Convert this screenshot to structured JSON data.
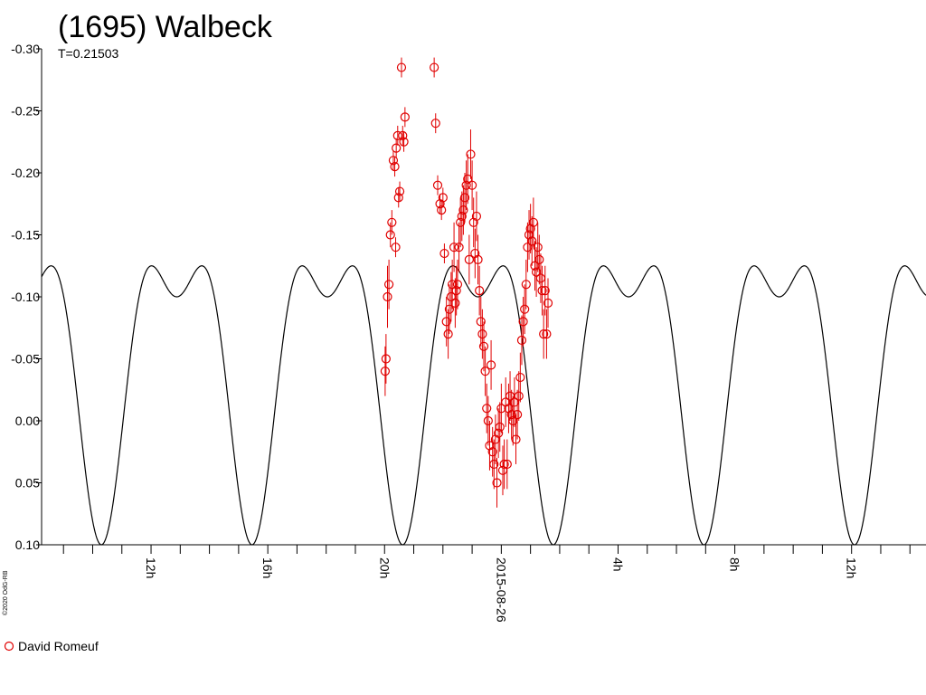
{
  "chart_data": {
    "type": "scatter",
    "title": "(1695) Walbeck",
    "subtitle": "T=0.21503",
    "copyright": "©2020 OdG-RB",
    "xlabel": "",
    "ylabel": "",
    "ylim": [
      0.1,
      -0.3
    ],
    "y_ticks": [
      "-0.30",
      "-0.25",
      "-0.20",
      "-0.15",
      "-0.10",
      "-0.05",
      "0.00",
      "0.05",
      "0.10"
    ],
    "x_ticks": [
      "12h",
      "16h",
      "20h",
      "2015-08-26",
      "4h",
      "8h",
      "12h"
    ],
    "x_tick_hours": [
      12,
      16,
      20,
      24,
      28,
      32,
      36
    ],
    "xlim_hours": [
      8.25,
      38.55
    ],
    "grid": false,
    "legend": {
      "placement": "bottom-left",
      "entries": [
        "David Romeuf"
      ]
    },
    "series": [
      {
        "name": "David Romeuf",
        "color": "#e00000",
        "marker": "open-circle",
        "points": [
          [
            20.02,
            -0.04,
            0.02
          ],
          [
            20.05,
            -0.05,
            0.02
          ],
          [
            20.1,
            -0.1,
            0.025
          ],
          [
            20.15,
            -0.11,
            0.02
          ],
          [
            20.2,
            -0.15,
            0.01
          ],
          [
            20.25,
            -0.16,
            0.01
          ],
          [
            20.3,
            -0.21,
            0.008
          ],
          [
            20.35,
            -0.205,
            0.008
          ],
          [
            20.4,
            -0.22,
            0.008
          ],
          [
            20.45,
            -0.23,
            0.008
          ],
          [
            20.52,
            -0.185,
            0.008
          ],
          [
            20.58,
            -0.285,
            0.008
          ],
          [
            20.62,
            -0.23,
            0.008
          ],
          [
            20.66,
            -0.225,
            0.008
          ],
          [
            20.7,
            -0.245,
            0.008
          ],
          [
            20.38,
            -0.14,
            0.008
          ],
          [
            20.48,
            -0.18,
            0.008
          ],
          [
            21.7,
            -0.285,
            0.008
          ],
          [
            21.75,
            -0.24,
            0.008
          ],
          [
            21.82,
            -0.19,
            0.008
          ],
          [
            21.9,
            -0.175,
            0.008
          ],
          [
            21.95,
            -0.17,
            0.008
          ],
          [
            22.0,
            -0.18,
            0.008
          ],
          [
            22.05,
            -0.135,
            0.008
          ],
          [
            22.12,
            -0.08,
            0.02
          ],
          [
            22.18,
            -0.07,
            0.02
          ],
          [
            22.22,
            -0.09,
            0.02
          ],
          [
            22.28,
            -0.1,
            0.02
          ],
          [
            22.32,
            -0.11,
            0.02
          ],
          [
            22.38,
            -0.14,
            0.02
          ],
          [
            22.42,
            -0.095,
            0.02
          ],
          [
            22.46,
            -0.105,
            0.02
          ],
          [
            22.5,
            -0.11,
            0.02
          ],
          [
            22.55,
            -0.14,
            0.02
          ],
          [
            22.6,
            -0.16,
            0.02
          ],
          [
            22.65,
            -0.165,
            0.02
          ],
          [
            22.7,
            -0.17,
            0.02
          ],
          [
            22.75,
            -0.18,
            0.02
          ],
          [
            22.8,
            -0.19,
            0.02
          ],
          [
            22.85,
            -0.195,
            0.02
          ],
          [
            22.9,
            -0.13,
            0.02
          ],
          [
            22.95,
            -0.215,
            0.02
          ],
          [
            23.0,
            -0.19,
            0.02
          ],
          [
            23.05,
            -0.16,
            0.02
          ],
          [
            23.1,
            -0.135,
            0.02
          ],
          [
            23.15,
            -0.165,
            0.02
          ],
          [
            23.2,
            -0.13,
            0.02
          ],
          [
            23.25,
            -0.105,
            0.02
          ],
          [
            23.3,
            -0.08,
            0.02
          ],
          [
            23.35,
            -0.07,
            0.02
          ],
          [
            23.4,
            -0.06,
            0.02
          ],
          [
            23.45,
            -0.04,
            0.02
          ],
          [
            23.5,
            -0.01,
            0.02
          ],
          [
            23.55,
            0.0,
            0.02
          ],
          [
            23.6,
            0.02,
            0.02
          ],
          [
            23.65,
            -0.045,
            0.02
          ],
          [
            23.7,
            0.025,
            0.02
          ],
          [
            23.75,
            0.035,
            0.02
          ],
          [
            23.8,
            0.015,
            0.02
          ],
          [
            23.85,
            0.05,
            0.02
          ],
          [
            23.9,
            0.01,
            0.02
          ],
          [
            23.95,
            0.005,
            0.02
          ],
          [
            24.0,
            -0.01,
            0.02
          ],
          [
            24.05,
            0.04,
            0.02
          ],
          [
            24.1,
            0.035,
            0.02
          ],
          [
            24.15,
            -0.015,
            0.02
          ],
          [
            24.2,
            0.035,
            0.02
          ],
          [
            24.25,
            -0.01,
            0.02
          ],
          [
            24.3,
            -0.02,
            0.02
          ],
          [
            24.35,
            -0.005,
            0.02
          ],
          [
            24.4,
            0.0,
            0.02
          ],
          [
            24.45,
            -0.015,
            0.02
          ],
          [
            24.5,
            0.015,
            0.02
          ],
          [
            24.55,
            -0.005,
            0.02
          ],
          [
            24.6,
            -0.02,
            0.02
          ],
          [
            24.65,
            -0.035,
            0.02
          ],
          [
            24.7,
            -0.065,
            0.02
          ],
          [
            24.75,
            -0.08,
            0.02
          ],
          [
            24.8,
            -0.09,
            0.02
          ],
          [
            24.85,
            -0.11,
            0.02
          ],
          [
            24.9,
            -0.14,
            0.02
          ],
          [
            24.95,
            -0.15,
            0.02
          ],
          [
            25.0,
            -0.155,
            0.02
          ],
          [
            25.05,
            -0.145,
            0.02
          ],
          [
            25.1,
            -0.16,
            0.02
          ],
          [
            25.15,
            -0.125,
            0.02
          ],
          [
            25.2,
            -0.12,
            0.02
          ],
          [
            25.25,
            -0.14,
            0.02
          ],
          [
            25.3,
            -0.13,
            0.02
          ],
          [
            25.35,
            -0.115,
            0.02
          ],
          [
            25.4,
            -0.105,
            0.02
          ],
          [
            25.45,
            -0.07,
            0.02
          ],
          [
            25.5,
            -0.105,
            0.02
          ],
          [
            25.55,
            -0.07,
            0.02
          ],
          [
            25.6,
            -0.095,
            0.02
          ]
        ]
      }
    ],
    "model": {
      "name": "",
      "color": "#000000",
      "period_hours": 5.1607,
      "fourier": {
        "c0": -0.05,
        "a1": 0.1,
        "a2": 0.05
      },
      "phase_anchor_hours": 23.2
    }
  }
}
